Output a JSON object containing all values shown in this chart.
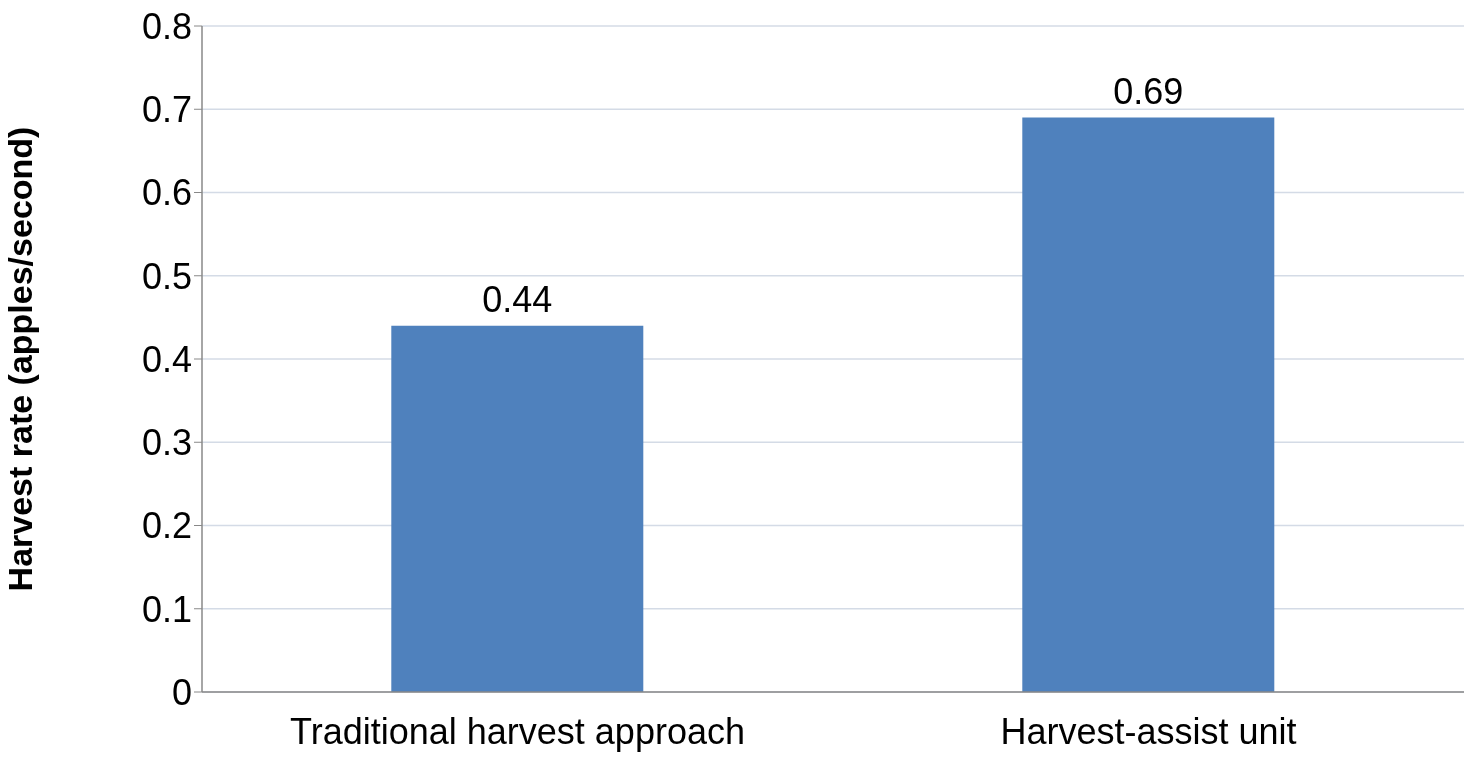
{
  "chart_data": {
    "type": "bar",
    "ylabel": "Harvest rate (apples/second)",
    "categories": [
      "Traditional harvest approach",
      "Harvest-assist unit"
    ],
    "values": [
      0.44,
      0.69
    ],
    "color": "#4f81bd",
    "ylim": [
      0,
      0.8
    ],
    "yticks": [
      0,
      0.1,
      0.2,
      0.3,
      0.4,
      0.5,
      0.6,
      0.7,
      0.8
    ],
    "grid": "y",
    "data_labels": true
  }
}
